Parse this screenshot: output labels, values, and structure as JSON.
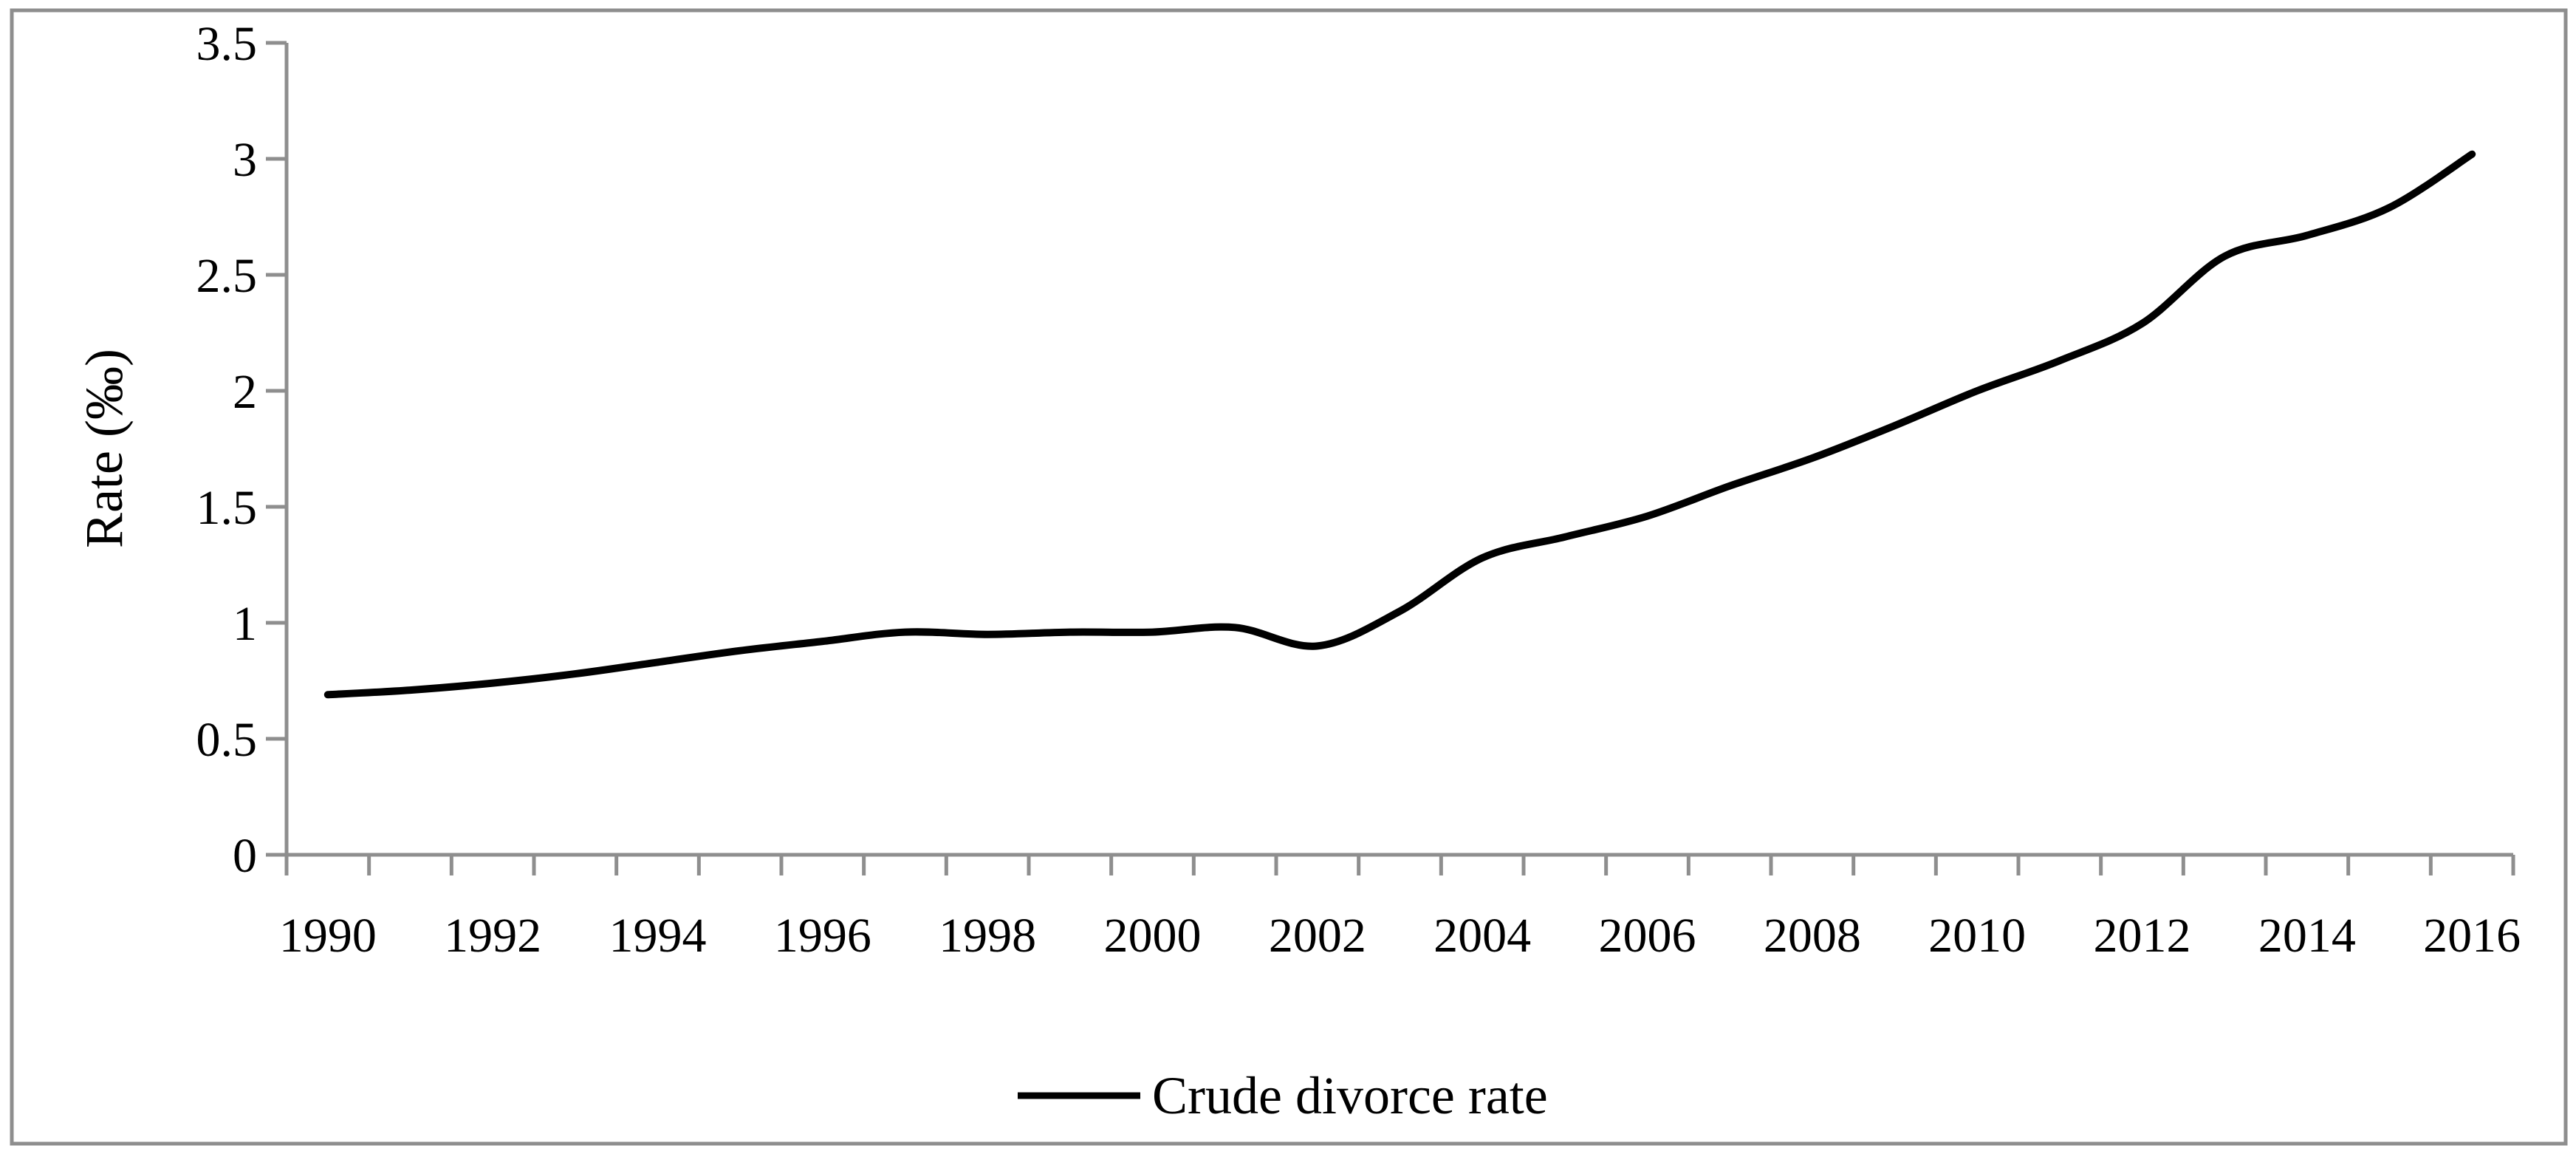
{
  "figure": {
    "background": "#ffffff",
    "border_color": "#8e8e8e",
    "axis_color": "#8e8e8e",
    "line_color": "#000000",
    "text_color": "#000000"
  },
  "chart_data": {
    "type": "line",
    "title": "",
    "xlabel": "",
    "ylabel": "Rate (‰)",
    "grid": false,
    "smoothed_line": true,
    "legend_position": "bottom-center",
    "x": [
      1990,
      1991,
      1992,
      1993,
      1994,
      1995,
      1996,
      1997,
      1998,
      1999,
      2000,
      2001,
      2002,
      2003,
      2004,
      2005,
      2006,
      2007,
      2008,
      2009,
      2010,
      2011,
      2012,
      2013,
      2014,
      2015,
      2016
    ],
    "series": [
      {
        "name": "Crude divorce rate",
        "values": [
          0.69,
          0.71,
          0.74,
          0.78,
          0.83,
          0.88,
          0.92,
          0.96,
          0.95,
          0.96,
          0.96,
          0.98,
          0.9,
          1.05,
          1.28,
          1.37,
          1.46,
          1.59,
          1.71,
          1.85,
          2.0,
          2.13,
          2.29,
          2.58,
          2.67,
          2.79,
          3.02
        ]
      }
    ],
    "ylim": [
      0,
      3.5
    ],
    "ytick_step": 0.5,
    "ytick_labels": [
      "3.5",
      "3",
      "2.5",
      "2",
      "1.5",
      "1",
      "0.5",
      "0"
    ],
    "xtick_labels": [
      "1990",
      "1992",
      "1994",
      "1996",
      "1998",
      "2000",
      "2002",
      "2004",
      "2006",
      "2008",
      "2010",
      "2012",
      "2014",
      "2016"
    ],
    "xtick_minor_every_year": true
  }
}
